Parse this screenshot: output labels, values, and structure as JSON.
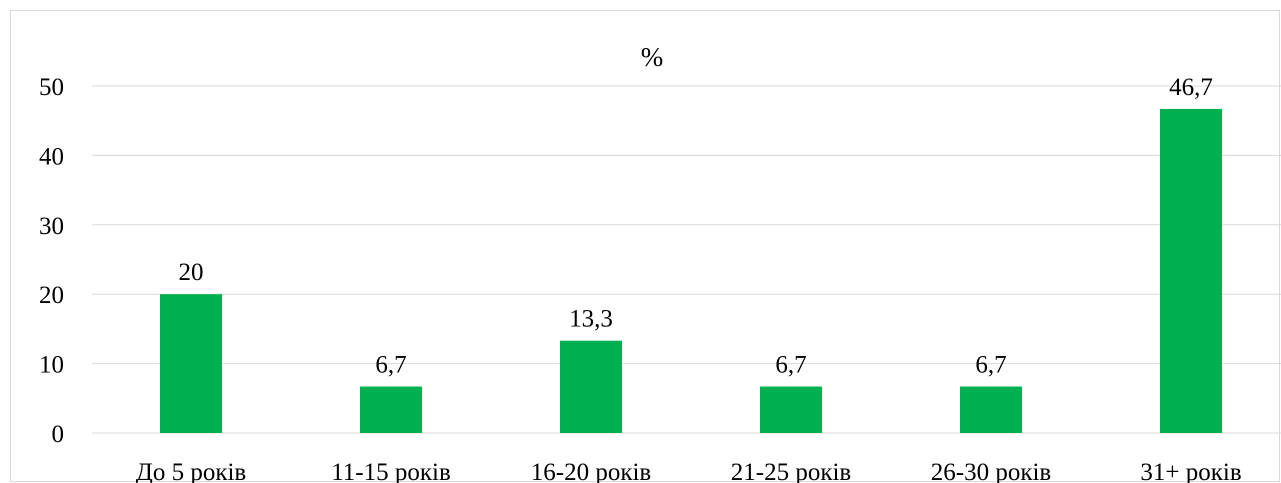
{
  "chart_data": {
    "type": "bar",
    "title": "%",
    "categories": [
      "До 5 років",
      "11-15 років",
      "16-20 років",
      "21-25 років",
      "26-30 років",
      "31+ років"
    ],
    "values": [
      20,
      6.7,
      13.3,
      6.7,
      6.7,
      46.7
    ],
    "data_labels": [
      "20",
      "6,7",
      "13,3",
      "6,7",
      "6,7",
      "46,7"
    ],
    "y_ticks": [
      "0",
      "10",
      "20",
      "30",
      "40",
      "50"
    ],
    "ylim": [
      0,
      50
    ],
    "grid": true,
    "legend": "none",
    "bar_color": "#00b050",
    "grid_color": "#d9d9d9"
  }
}
